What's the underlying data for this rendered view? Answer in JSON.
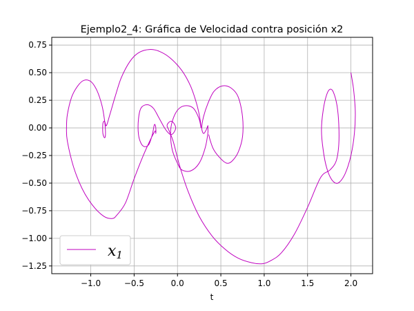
{
  "chart_data": {
    "type": "line",
    "title": "Ejemplo2_4: Gráfica de Velocidad contra posición x2",
    "xlabel": "t",
    "ylabel": "",
    "xlim": [
      -1.45,
      2.25
    ],
    "ylim": [
      -1.32,
      0.82
    ],
    "xticks": [
      -1.0,
      -0.5,
      0.0,
      0.5,
      1.0,
      1.5,
      2.0
    ],
    "xtick_labels": [
      "−1.0",
      "−0.5",
      "0.0",
      "0.5",
      "1.0",
      "1.5",
      "2.0"
    ],
    "yticks": [
      0.75,
      0.5,
      0.25,
      0.0,
      -0.25,
      -0.5,
      -0.75,
      -1.0,
      -1.25
    ],
    "ytick_labels": [
      "0.75",
      "0.50",
      "0.25",
      "0.00",
      "−0.25",
      "−0.50",
      "−0.75",
      "−1.00",
      "−1.25"
    ],
    "grid": true,
    "legend": {
      "placement": "lower-left",
      "entries": [
        "x1"
      ],
      "label_main": "x",
      "label_sub": "1"
    },
    "series": [
      {
        "name": "x1",
        "color": "#bf00bf",
        "points": [
          [
            2.0,
            0.5
          ],
          [
            2.03,
            0.35
          ],
          [
            2.05,
            0.15
          ],
          [
            2.04,
            -0.05
          ],
          [
            2.0,
            -0.25
          ],
          [
            1.93,
            -0.42
          ],
          [
            1.85,
            -0.5
          ],
          [
            1.78,
            -0.47
          ],
          [
            1.72,
            -0.36
          ],
          [
            1.68,
            -0.2
          ],
          [
            1.66,
            -0.02
          ],
          [
            1.68,
            0.16
          ],
          [
            1.72,
            0.3
          ],
          [
            1.76,
            0.35
          ],
          [
            1.8,
            0.32
          ],
          [
            1.84,
            0.2
          ],
          [
            1.86,
            0.03
          ],
          [
            1.86,
            -0.15
          ],
          [
            1.83,
            -0.3
          ],
          [
            1.76,
            -0.38
          ],
          [
            1.65,
            -0.45
          ],
          [
            1.5,
            -0.72
          ],
          [
            1.35,
            -0.96
          ],
          [
            1.2,
            -1.13
          ],
          [
            1.08,
            -1.2
          ],
          [
            0.98,
            -1.23
          ],
          [
            0.85,
            -1.22
          ],
          [
            0.7,
            -1.18
          ],
          [
            0.55,
            -1.1
          ],
          [
            0.4,
            -0.98
          ],
          [
            0.25,
            -0.8
          ],
          [
            0.12,
            -0.57
          ],
          [
            0.02,
            -0.33
          ],
          [
            -0.05,
            -0.12
          ],
          [
            -0.1,
            -0.02
          ],
          [
            -0.12,
            0.02
          ],
          [
            -0.1,
            0.05
          ],
          [
            -0.07,
            0.06
          ],
          [
            -0.04,
            0.04
          ],
          [
            -0.02,
            0.0
          ],
          [
            -0.04,
            -0.04
          ],
          [
            -0.07,
            -0.06
          ],
          [
            -0.1,
            -0.05
          ],
          [
            -0.15,
            0.0
          ],
          [
            -0.22,
            0.1
          ],
          [
            -0.28,
            0.18
          ],
          [
            -0.35,
            0.21
          ],
          [
            -0.42,
            0.18
          ],
          [
            -0.45,
            0.08
          ],
          [
            -0.45,
            -0.06
          ],
          [
            -0.42,
            -0.14
          ],
          [
            -0.38,
            -0.17
          ],
          [
            -0.33,
            -0.15
          ],
          [
            -0.29,
            -0.06
          ],
          [
            -0.27,
            0.02
          ],
          [
            -0.26,
            0.03
          ],
          [
            -0.25,
            0.0
          ],
          [
            -0.25,
            -0.05
          ],
          [
            -0.26,
            -0.03
          ],
          [
            -0.32,
            -0.12
          ],
          [
            -0.4,
            -0.26
          ],
          [
            -0.5,
            -0.46
          ],
          [
            -0.6,
            -0.68
          ],
          [
            -0.7,
            -0.79
          ],
          [
            -0.75,
            -0.82
          ],
          [
            -0.85,
            -0.8
          ],
          [
            -0.98,
            -0.7
          ],
          [
            -1.1,
            -0.55
          ],
          [
            -1.2,
            -0.35
          ],
          [
            -1.27,
            -0.12
          ],
          [
            -1.28,
            0.0
          ],
          [
            -1.27,
            0.12
          ],
          [
            -1.22,
            0.28
          ],
          [
            -1.15,
            0.38
          ],
          [
            -1.08,
            0.43
          ],
          [
            -1.0,
            0.42
          ],
          [
            -0.93,
            0.34
          ],
          [
            -0.87,
            0.2
          ],
          [
            -0.84,
            0.06
          ],
          [
            -0.83,
            -0.05
          ],
          [
            -0.84,
            -0.09
          ],
          [
            -0.86,
            -0.05
          ],
          [
            -0.86,
            0.04
          ],
          [
            -0.84,
            0.06
          ],
          [
            -0.82,
            0.02
          ],
          [
            -0.78,
            0.12
          ],
          [
            -0.72,
            0.28
          ],
          [
            -0.65,
            0.45
          ],
          [
            -0.55,
            0.6
          ],
          [
            -0.45,
            0.68
          ],
          [
            -0.32,
            0.71
          ],
          [
            -0.2,
            0.69
          ],
          [
            -0.08,
            0.63
          ],
          [
            0.05,
            0.52
          ],
          [
            0.15,
            0.38
          ],
          [
            0.22,
            0.22
          ],
          [
            0.26,
            0.08
          ],
          [
            0.27,
            0.0
          ],
          [
            0.25,
            0.08
          ],
          [
            0.18,
            0.18
          ],
          [
            0.08,
            0.2
          ],
          [
            0.0,
            0.16
          ],
          [
            -0.06,
            0.06
          ],
          [
            -0.08,
            -0.05
          ],
          [
            -0.06,
            -0.2
          ],
          [
            0.0,
            -0.32
          ],
          [
            0.05,
            -0.38
          ],
          [
            0.15,
            -0.39
          ],
          [
            0.25,
            -0.32
          ],
          [
            0.32,
            -0.18
          ],
          [
            0.35,
            -0.05
          ],
          [
            0.35,
            0.0
          ],
          [
            0.35,
            0.02
          ],
          [
            0.33,
            -0.02
          ],
          [
            0.3,
            -0.05
          ],
          [
            0.28,
            0.0
          ],
          [
            0.3,
            0.1
          ],
          [
            0.35,
            0.22
          ],
          [
            0.42,
            0.33
          ],
          [
            0.52,
            0.38
          ],
          [
            0.62,
            0.36
          ],
          [
            0.7,
            0.28
          ],
          [
            0.75,
            0.1
          ],
          [
            0.75,
            -0.08
          ],
          [
            0.7,
            -0.22
          ],
          [
            0.63,
            -0.3
          ],
          [
            0.57,
            -0.32
          ],
          [
            0.5,
            -0.28
          ],
          [
            0.42,
            -0.2
          ],
          [
            0.38,
            -0.12
          ],
          [
            0.36,
            -0.06
          ]
        ]
      }
    ]
  }
}
